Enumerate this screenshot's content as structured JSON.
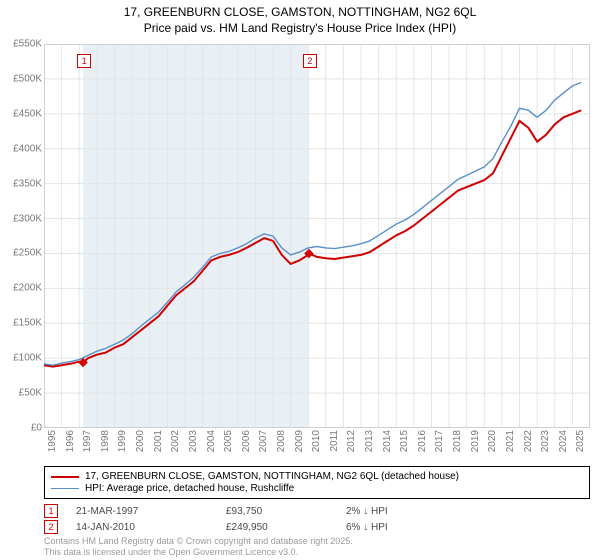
{
  "title_line1": "17, GREENBURN CLOSE, GAMSTON, NOTTINGHAM, NG2 6QL",
  "title_line2": "Price paid vs. HM Land Registry's House Price Index (HPI)",
  "chart": {
    "type": "line",
    "background_color": "#ffffff",
    "grid_color": "#e4e4e4",
    "highlight_band_color": "#e9f0f5",
    "highlight_band_x": [
      1997.22,
      2010.04
    ],
    "xlim": [
      1995,
      2026
    ],
    "ylim": [
      0,
      550
    ],
    "xticks": [
      1995,
      1996,
      1997,
      1998,
      1999,
      2000,
      2001,
      2002,
      2003,
      2004,
      2005,
      2006,
      2007,
      2008,
      2009,
      2010,
      2011,
      2012,
      2013,
      2014,
      2015,
      2016,
      2017,
      2018,
      2019,
      2020,
      2021,
      2022,
      2023,
      2024,
      2025
    ],
    "yticks": [
      0,
      50,
      100,
      150,
      200,
      250,
      300,
      350,
      400,
      450,
      500,
      550
    ],
    "ytick_labels": [
      "£0",
      "£50K",
      "£100K",
      "£150K",
      "£200K",
      "£250K",
      "£300K",
      "£350K",
      "£400K",
      "£450K",
      "£500K",
      "£550K"
    ],
    "axis_label_fontsize": 10,
    "axis_label_color": "#797979",
    "series": [
      {
        "name": "subject",
        "label": "17, GREENBURN CLOSE, GAMSTON, NOTTINGHAM, NG2 6QL (detached house)",
        "color": "#cf0000",
        "line_width": 2,
        "x": [
          1995,
          1995.5,
          1996,
          1996.5,
          1997,
          1997.22,
          1997.5,
          1998,
          1998.5,
          1999,
          1999.5,
          2000,
          2000.5,
          2001,
          2001.5,
          2002,
          2002.5,
          2003,
          2003.5,
          2004,
          2004.5,
          2005,
          2005.5,
          2006,
          2006.5,
          2007,
          2007.5,
          2008,
          2008.5,
          2009,
          2009.5,
          2010,
          2010.04,
          2010.5,
          2011,
          2011.5,
          2012,
          2012.5,
          2013,
          2013.5,
          2014,
          2014.5,
          2015,
          2015.5,
          2016,
          2016.5,
          2017,
          2017.5,
          2018,
          2018.5,
          2019,
          2019.5,
          2020,
          2020.5,
          2021,
          2021.5,
          2022,
          2022.5,
          2023,
          2023.5,
          2024,
          2024.5,
          2025,
          2025.5
        ],
        "y": [
          90,
          88,
          90,
          92,
          95,
          93.75,
          100,
          105,
          108,
          115,
          120,
          130,
          140,
          150,
          160,
          175,
          190,
          200,
          210,
          225,
          240,
          245,
          248,
          252,
          258,
          265,
          272,
          268,
          248,
          235,
          240,
          248,
          249.95,
          245,
          243,
          242,
          244,
          246,
          248,
          252,
          260,
          268,
          276,
          282,
          290,
          300,
          310,
          320,
          330,
          340,
          345,
          350,
          355,
          365,
          390,
          415,
          440,
          430,
          410,
          420,
          435,
          445,
          450,
          455
        ]
      },
      {
        "name": "hpi",
        "label": "HPI: Average price, detached house, Rushcliffe",
        "color": "#5a8fc8",
        "line_width": 1.4,
        "x": [
          1995,
          1995.5,
          1996,
          1996.5,
          1997,
          1997.5,
          1998,
          1998.5,
          1999,
          1999.5,
          2000,
          2000.5,
          2001,
          2001.5,
          2002,
          2002.5,
          2003,
          2003.5,
          2004,
          2004.5,
          2005,
          2005.5,
          2006,
          2006.5,
          2007,
          2007.5,
          2008,
          2008.5,
          2009,
          2009.5,
          2010,
          2010.5,
          2011,
          2011.5,
          2012,
          2012.5,
          2013,
          2013.5,
          2014,
          2014.5,
          2015,
          2015.5,
          2016,
          2016.5,
          2017,
          2017.5,
          2018,
          2018.5,
          2019,
          2019.5,
          2020,
          2020.5,
          2021,
          2021.5,
          2022,
          2022.5,
          2023,
          2023.5,
          2024,
          2024.5,
          2025,
          2025.5
        ],
        "y": [
          92,
          90,
          93,
          95,
          98,
          104,
          110,
          114,
          120,
          126,
          135,
          146,
          156,
          166,
          180,
          195,
          205,
          216,
          230,
          245,
          250,
          253,
          258,
          264,
          272,
          278,
          275,
          258,
          248,
          252,
          258,
          260,
          258,
          257,
          259,
          261,
          264,
          268,
          276,
          284,
          292,
          298,
          306,
          316,
          326,
          336,
          346,
          356,
          362,
          368,
          374,
          386,
          410,
          432,
          458,
          455,
          445,
          455,
          470,
          480,
          490,
          495
        ]
      }
    ],
    "sale_markers": [
      {
        "n": "1",
        "x": 1997.22,
        "y": 93.75,
        "color": "#cf0000"
      },
      {
        "n": "2",
        "x": 2010.04,
        "y": 249.95,
        "color": "#cf0000"
      }
    ]
  },
  "legend": {
    "rows": [
      {
        "color": "#cf0000",
        "width": 2,
        "label": "17, GREENBURN CLOSE, GAMSTON, NOTTINGHAM, NG2 6QL (detached house)"
      },
      {
        "color": "#5a8fc8",
        "width": 1.4,
        "label": "HPI: Average price, detached house, Rushcliffe"
      }
    ]
  },
  "sales": [
    {
      "n": "1",
      "color": "#cf0000",
      "date": "21-MAR-1997",
      "price": "£93,750",
      "diff": "2% ↓ HPI"
    },
    {
      "n": "2",
      "color": "#cf0000",
      "date": "14-JAN-2010",
      "price": "£249,950",
      "diff": "6% ↓ HPI"
    }
  ],
  "footer_line1": "Contains HM Land Registry data © Crown copyright and database right 2025.",
  "footer_line2": "This data is licensed under the Open Government Licence v3.0."
}
